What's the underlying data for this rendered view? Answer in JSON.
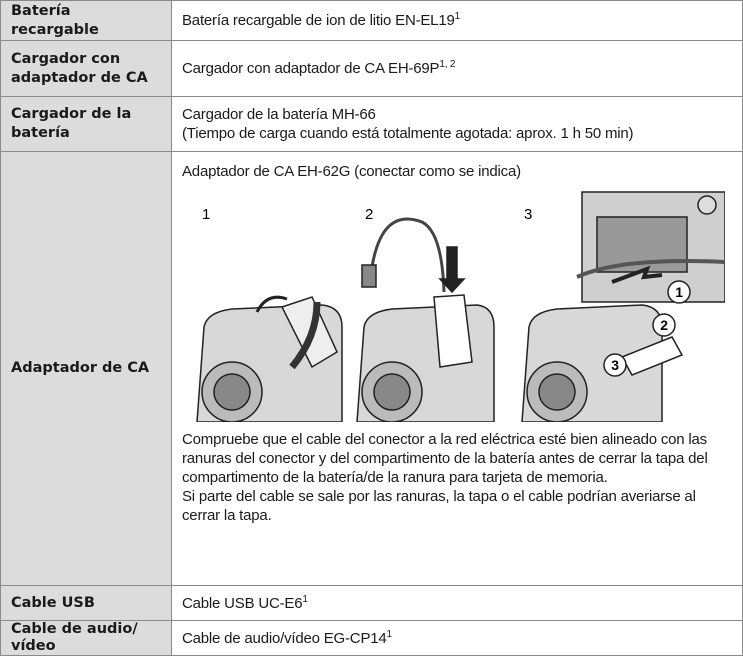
{
  "table": {
    "rows": [
      {
        "label": "Batería recargable",
        "text": "Batería recargable de ion de litio EN-EL19",
        "note": "1"
      },
      {
        "label": "Cargador con adaptador de CA",
        "text": "Cargador con adaptador de CA EH-69P",
        "note": "1, 2"
      },
      {
        "label": "Cargador de la batería",
        "text": "Cargador de la batería MH-66",
        "text2": "(Tiempo de carga cuando está totalmente agotada: aprox. 1 h 50 min)"
      },
      {
        "label": "Adaptador de CA",
        "text": "Adaptador de CA EH-62G (conectar como se indica)",
        "steps": [
          "1",
          "2",
          "3"
        ],
        "callouts": [
          "1",
          "2",
          "3"
        ],
        "paragraphs": [
          "Compruebe que el cable del conector a la red eléctrica esté bien alineado con las ranuras del conector y del compartimento de la batería antes de cerrar la tapa del compartimento de la batería/de la ranura para tarjeta de memoria.",
          "Si parte del cable se sale por las ranuras, la tapa o el cable podrían averiarse al cerrar la tapa."
        ]
      },
      {
        "label": "Cable USB",
        "text": "Cable USB UC-E6",
        "note": "1"
      },
      {
        "label": "Cable de audio/ vídeo",
        "text": "Cable de audio/vídeo EG-CP14",
        "note": "1"
      }
    ]
  }
}
